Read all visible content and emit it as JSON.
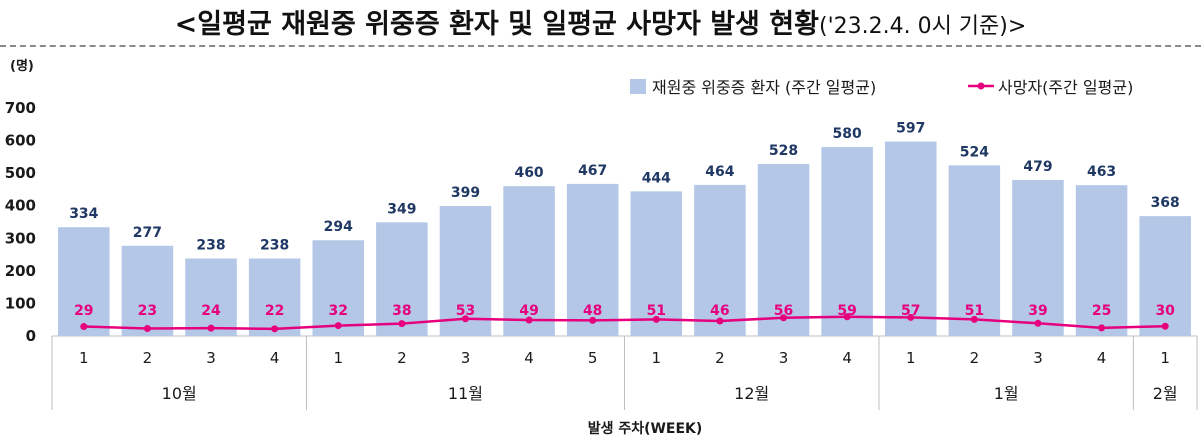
{
  "title": {
    "main": "<일평균 재원중 위중증 환자 및 일평균 사망자 발생 현황",
    "sub": "('23.2.4. 0시 기준)>"
  },
  "chart_data": {
    "type": "bar",
    "unit_label": "(명)",
    "xlabel": "발생 주차(WEEK)",
    "ylim": [
      0,
      700
    ],
    "yticks": [
      0,
      100,
      200,
      300,
      400,
      500,
      600,
      700
    ],
    "grid": false,
    "legend_position": "top-right",
    "groups": [
      {
        "label": "10월",
        "weeks": [
          "1",
          "2",
          "3",
          "4"
        ]
      },
      {
        "label": "11월",
        "weeks": [
          "1",
          "2",
          "3",
          "4",
          "5"
        ]
      },
      {
        "label": "12월",
        "weeks": [
          "1",
          "2",
          "3",
          "4"
        ]
      },
      {
        "label": "1월",
        "weeks": [
          "1",
          "2",
          "3",
          "4"
        ]
      },
      {
        "label": "2월",
        "weeks": [
          "1"
        ]
      }
    ],
    "series": [
      {
        "name": "재원중 위중증 환자 (주간 일평균)",
        "type": "bar",
        "color": "#b4c7e7",
        "values": [
          334,
          277,
          238,
          238,
          294,
          349,
          399,
          460,
          467,
          444,
          464,
          528,
          580,
          597,
          524,
          479,
          463,
          368
        ]
      },
      {
        "name": "사망자(주간 일평균)",
        "type": "line",
        "color": "#e6007e",
        "values": [
          29,
          23,
          24,
          22,
          32,
          38,
          53,
          49,
          48,
          51,
          46,
          56,
          59,
          57,
          51,
          39,
          25,
          30
        ]
      }
    ]
  }
}
